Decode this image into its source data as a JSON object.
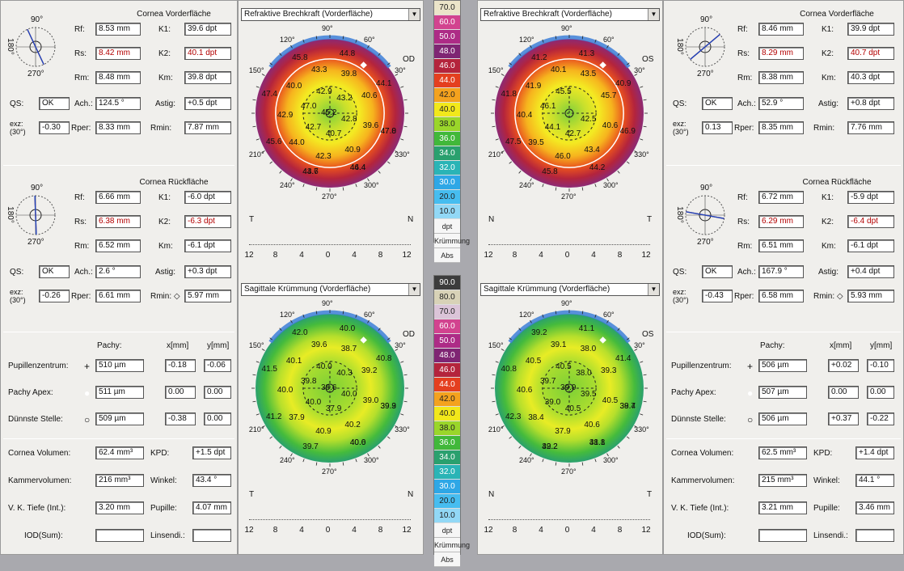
{
  "left": {
    "front": {
      "title": "Cornea Vorderfläche",
      "rows": [
        {
          "l1": "Rf:",
          "v1": "8.53 mm",
          "l2": "K1:",
          "v2": "39.6 dpt"
        },
        {
          "l1": "Rs:",
          "v1": "8.42 mm",
          "l2": "K2:",
          "v2": "40.1 dpt"
        },
        {
          "l1": "Rm:",
          "v1": "8.48 mm",
          "l2": "Km:",
          "v2": "39.8 dpt"
        }
      ],
      "qs_label": "QS:",
      "qs": "OK",
      "ach_label": "Ach.:",
      "ach": "124.5 °",
      "astig_label": "Astig:",
      "astig": "+0.5 dpt",
      "exz_label": "exz:\n(30°)",
      "exz": "-0.30",
      "rper_label": "Rper:",
      "rper": "8.33 mm",
      "rmin_label": "Rmin:",
      "rmin": "7.87 mm"
    },
    "back": {
      "title": "Cornea Rückfläche",
      "rows": [
        {
          "l1": "Rf:",
          "v1": "6.66 mm",
          "l2": "K1:",
          "v2": "-6.0 dpt"
        },
        {
          "l1": "Rs:",
          "v1": "6.38 mm",
          "l2": "K2:",
          "v2": "-6.3 dpt"
        },
        {
          "l1": "Rm:",
          "v1": "6.52 mm",
          "l2": "Km:",
          "v2": "-6.1 dpt"
        }
      ],
      "qs_label": "QS:",
      "qs": "OK",
      "ach_label": "Ach.:",
      "ach": "2.6 °",
      "astig_label": "Astig:",
      "astig": "+0.3 dpt",
      "exz_label": "exz:\n(30°)",
      "exz": "-0.26",
      "rper_label": "Rper:",
      "rper": "6.61 mm",
      "rmin_label": "Rmin: ◇",
      "rmin": "5.97 mm"
    },
    "pachy": {
      "h_pachy": "Pachy:",
      "h_x": "x[mm]",
      "h_y": "y[mm]",
      "rows": [
        {
          "label": "Pupillenzentrum:",
          "sym": "+",
          "pachy": "510 µm",
          "x": "-0.18",
          "y": "-0.06"
        },
        {
          "label": "Pachy Apex:",
          "sym": "●",
          "pachy": "511 µm",
          "x": "0.00",
          "y": "0.00"
        },
        {
          "label": "Dünnste Stelle:",
          "sym": "○",
          "pachy": "509 µm",
          "x": "-0.38",
          "y": "0.00"
        }
      ]
    },
    "misc": {
      "vol_label": "Cornea Volumen:",
      "vol": "62.4 mm³",
      "kpd_label": "KPD:",
      "kpd": "+1.5 dpt",
      "kam_label": "Kammervolumen:",
      "kam": "216 mm³",
      "winkel_label": "Winkel:",
      "winkel": "43.4 °",
      "vk_label": "V. K. Tiefe (Int.):",
      "vk": "3.20 mm",
      "pupille_label": "Pupille:",
      "pupille": "4.07 mm",
      "iod_label": "IOD(Sum):",
      "iod": "",
      "linsen_label": "Linsendi.:",
      "linsen": ""
    },
    "map_top": {
      "dropdown": "Refraktive Brechkraft (Vorderfläche)",
      "eye": "OD",
      "nasal": "N",
      "temporal": "T"
    },
    "map_bottom": {
      "dropdown": "Sagittale Krümmung (Vorderfläche)",
      "eye": "OD",
      "nasal": "N",
      "temporal": "T"
    }
  },
  "right": {
    "front": {
      "title": "Cornea Vorderfläche",
      "rows": [
        {
          "l1": "Rf:",
          "v1": "8.46 mm",
          "l2": "K1:",
          "v2": "39.9 dpt"
        },
        {
          "l1": "Rs:",
          "v1": "8.29 mm",
          "l2": "K2:",
          "v2": "40.7 dpt"
        },
        {
          "l1": "Rm:",
          "v1": "8.38 mm",
          "l2": "Km:",
          "v2": "40.3 dpt"
        }
      ],
      "qs_label": "QS:",
      "qs": "OK",
      "ach_label": "Ach.:",
      "ach": "52.9 °",
      "astig_label": "Astig:",
      "astig": "+0.8 dpt",
      "exz_label": "exz:\n(30°)",
      "exz": "0.13",
      "rper_label": "Rper:",
      "rper": "8.35 mm",
      "rmin_label": "Rmin:",
      "rmin": "7.76 mm"
    },
    "back": {
      "title": "Cornea Rückfläche",
      "rows": [
        {
          "l1": "Rf:",
          "v1": "6.72 mm",
          "l2": "K1:",
          "v2": "-5.9 dpt"
        },
        {
          "l1": "Rs:",
          "v1": "6.29 mm",
          "l2": "K2:",
          "v2": "-6.4 dpt"
        },
        {
          "l1": "Rm:",
          "v1": "6.51 mm",
          "l2": "Km:",
          "v2": "-6.1 dpt"
        }
      ],
      "qs_label": "QS:",
      "qs": "OK",
      "ach_label": "Ach.:",
      "ach": "167.9 °",
      "astig_label": "Astig:",
      "astig": "+0.4 dpt",
      "exz_label": "exz:\n(30°)",
      "exz": "-0.43",
      "rper_label": "Rper:",
      "rper": "6.58 mm",
      "rmin_label": "Rmin: ◇",
      "rmin": "5.93 mm"
    },
    "pachy": {
      "h_pachy": "Pachy:",
      "h_x": "x[mm]",
      "h_y": "y[mm]",
      "rows": [
        {
          "label": "Pupillenzentrum:",
          "sym": "+",
          "pachy": "506 µm",
          "x": "+0.02",
          "y": "-0.10"
        },
        {
          "label": "Pachy Apex:",
          "sym": "●",
          "pachy": "507 µm",
          "x": "0.00",
          "y": "0.00"
        },
        {
          "label": "Dünnste Stelle:",
          "sym": "○",
          "pachy": "506 µm",
          "x": "+0.37",
          "y": "-0.22"
        }
      ]
    },
    "misc": {
      "vol_label": "Cornea Volumen:",
      "vol": "62.5 mm³",
      "kpd_label": "KPD:",
      "kpd": "+1.4 dpt",
      "kam_label": "Kammervolumen:",
      "kam": "215 mm³",
      "winkel_label": "Winkel:",
      "winkel": "44.1 °",
      "vk_label": "V. K. Tiefe (Int.):",
      "vk": "3.21 mm",
      "pupille_label": "Pupille:",
      "pupille": "3.46 mm",
      "iod_label": "IOD(Sum):",
      "iod": "",
      "linsen_label": "Linsendi.:",
      "linsen": ""
    },
    "map_top": {
      "dropdown": "Refraktive Brechkraft (Vorderfläche)",
      "eye": "OS",
      "nasal": "N",
      "temporal": "T"
    },
    "map_bottom": {
      "dropdown": "Sagittale Krümmung (Vorderfläche)",
      "eye": "OS",
      "nasal": "N",
      "temporal": "T"
    }
  },
  "axis_ticks": [
    "12",
    "8",
    "4",
    "0",
    "4",
    "8",
    "12"
  ],
  "compass": {
    "deg90": "90°",
    "deg180": "180°",
    "deg270": "270°"
  },
  "ring_degrees": [
    "90°",
    "60°",
    "30°",
    "330°",
    "300°",
    "270°",
    "240°",
    "210°",
    "150°",
    "120°"
  ],
  "scale_top": {
    "values": [
      "70.0",
      "60.0",
      "50.0",
      "48.0",
      "46.0",
      "44.0",
      "42.0",
      "40.0",
      "38.0",
      "36.0",
      "34.0",
      "32.0",
      "30.0",
      "20.0",
      "10.0"
    ],
    "colors": [
      "#ebe4c9",
      "#d2438f",
      "#ad2b86",
      "#7f2573",
      "#b4243c",
      "#e43f1f",
      "#f4a21e",
      "#f2e81b",
      "#9ad62a",
      "#41b83a",
      "#2aa06e",
      "#2ab4b6",
      "#2ea7e6",
      "#46bdf0",
      "#92d8f6"
    ],
    "unit": "dpt",
    "mode": "Krümmung",
    "type": "Abs"
  },
  "scale_bottom": {
    "values": [
      "90.0",
      "80.0",
      "70.0",
      "60.0",
      "50.0",
      "48.0",
      "46.0",
      "44.0",
      "42.0",
      "40.0",
      "38.0",
      "36.0",
      "34.0",
      "32.0",
      "30.0",
      "20.0",
      "10.0"
    ],
    "colors": [
      "#3c3c3c",
      "#d8d2b7",
      "#dbc4d8",
      "#d2438f",
      "#ad2b86",
      "#7f2573",
      "#b4243c",
      "#e43f1f",
      "#f4a21e",
      "#f2e81b",
      "#9ad62a",
      "#41b83a",
      "#2aa06e",
      "#2ab4b6",
      "#2ea7e6",
      "#46bdf0",
      "#92d8f6"
    ],
    "unit": "dpt",
    "mode": "Krümmung",
    "type": "Abs"
  },
  "map_values": {
    "l_top": [
      "47.0",
      "44.4",
      "44.7",
      "45.6",
      "47.4",
      "45.8",
      "44.8",
      "44.1",
      "39.6",
      "40.9",
      "42.3",
      "44.0",
      "42.9",
      "40.0",
      "43.3",
      "39.8",
      "40.6",
      "42.8",
      "40.7",
      "42.7",
      "47.0",
      "42.9",
      "43.2",
      "45.2",
      "47.8",
      "46.4",
      "43.6"
    ],
    "r_top": [
      "46.9",
      "44.2",
      "45.8",
      "47.5",
      "41.8",
      "41.2",
      "41.3",
      "40.9",
      "40.6",
      "43.4",
      "46.0",
      "39.5",
      "40.4",
      "41.9",
      "40.1",
      "43.5",
      "45.7",
      "42.5",
      "42.7",
      "44.1",
      "46.1",
      "45.5"
    ],
    "l_bottom": [
      "39.9",
      "40.0",
      "39.7",
      "41.2",
      "41.5",
      "42.0",
      "40.0",
      "40.8",
      "39.0",
      "40.2",
      "40.9",
      "37.9",
      "40.0",
      "40.1",
      "39.6",
      "38.7",
      "39.2",
      "40.0",
      "37.9",
      "40.0",
      "39.8",
      "40.0",
      "40.3",
      "38.6",
      "39.3",
      "40.6"
    ],
    "r_bottom": [
      "39.4",
      "41.1",
      "42.2",
      "42.3",
      "40.8",
      "39.2",
      "41.1",
      "41.4",
      "40.5",
      "40.6",
      "37.9",
      "38.4",
      "40.6",
      "40.5",
      "39.1",
      "38.0",
      "39.3",
      "39.5",
      "40.5",
      "39.0",
      "39.7",
      "40.5",
      "38.0",
      "39.9",
      "38.7",
      "38.8",
      "39.2"
    ]
  }
}
